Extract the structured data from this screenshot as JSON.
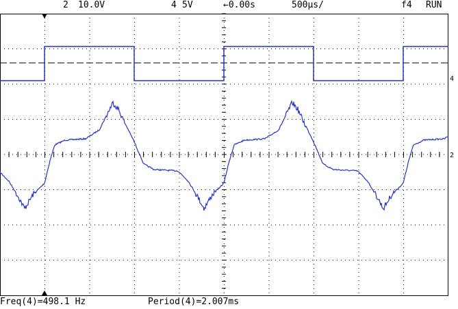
{
  "header": {
    "ch2_label": "2",
    "ch2_scale": "10.0V",
    "ch4_label": "4",
    "ch4_scale": "5V",
    "delay": "←0.00s",
    "timebase": "500µs/",
    "trigger": "f4",
    "status": "RUN"
  },
  "markers": {
    "ch4": "4",
    "ch2": "2"
  },
  "footer": {
    "frequency": "Freq(4)=498.1 Hz",
    "period": "Period(4)=2.007ms"
  }
}
